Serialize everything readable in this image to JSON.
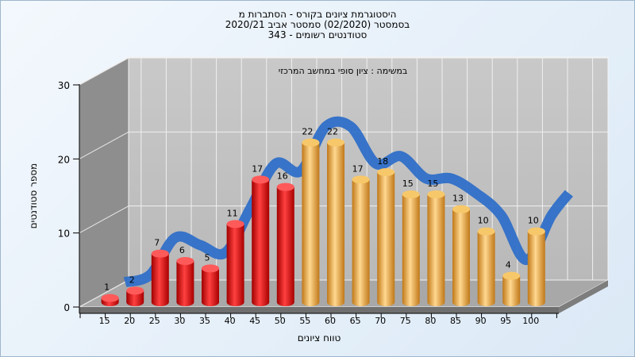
{
  "chart_title": {
    "line1": "היסטוגרמת ציונים בקורס - הסתברות מ",
    "line2": "בסמסטר  (02/2020)  סמסטר אביב 2020/21",
    "line3": "סטודנטים רשומים - 343"
  },
  "chart_data": {
    "type": "bar",
    "subtitle": "במשימה : ציון סופי במחשב המרכזי",
    "xlabel": "טווח ציונים",
    "ylabel": "מספר סטודנטים",
    "ylim": [
      0,
      30
    ],
    "yticks": [
      0,
      10,
      20,
      30
    ],
    "categories": [
      "15",
      "20",
      "25",
      "30",
      "35",
      "40",
      "45",
      "50",
      "55",
      "60",
      "65",
      "70",
      "75",
      "80",
      "85",
      "90",
      "95",
      "100"
    ],
    "values": [
      1,
      2,
      7,
      6,
      5,
      11,
      17,
      16,
      22,
      22,
      17,
      18,
      15,
      15,
      13,
      10,
      4,
      10
    ],
    "grid": true,
    "bar_colors": {
      "fail": "#e01010",
      "pass": "#f0a830"
    },
    "pass_from_index": 8,
    "trend_color": "#2f6fc8"
  }
}
